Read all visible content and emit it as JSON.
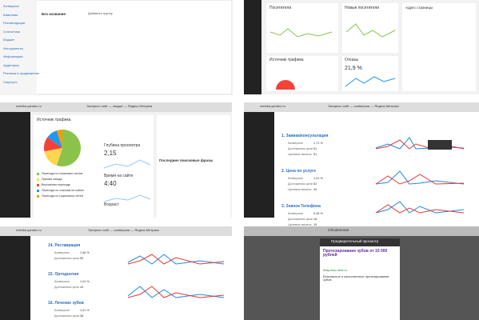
{
  "p1": {
    "sidebar": [
      "Конверсии",
      "Кампании",
      "Рекомендации",
      "Статистика",
      "Бюджет",
      "Инструменты",
      "Информация",
      "Аудитории",
      "Реклама и продвижение",
      "Свернуть"
    ],
    "title": "Без названия",
    "button": "Добавить группу"
  },
  "p2": {
    "visitors": "Посетители",
    "new_visitors": "Новые посетители",
    "page_address": "Адрес страницы",
    "traffic": "Источник трафика",
    "bounce": "Отказы",
    "bounce_value": "21,9 %"
  },
  "p3": {
    "tab": "metrika.yandex.ru",
    "page_title": "Экспресс сайт — сводка — Яндекс.Метрика",
    "traffic": {
      "title": "Источник трафика",
      "legend": [
        "Переходы из поисковых систем",
        "Прямые заходы",
        "Внутренние переходы",
        "Переходы по ссылкам на сайтах",
        "Переходы из социальных сетей"
      ],
      "values": [
        55,
        17,
        13,
        10,
        5
      ],
      "colors": [
        "#8bc34a",
        "#ffd54f",
        "#f44336",
        "#2196f3",
        "#ff9800"
      ]
    },
    "depth": {
      "title": "Глубина просмотра",
      "value": "2,15"
    },
    "time": {
      "title": "Время на сайте",
      "value": "4:40"
    },
    "age": "Возраст",
    "phrases": "Последние поисковые фразы"
  },
  "p4": {
    "tab": "metrika.yandex.ru",
    "page_title": "Экспресс сайт — конверсии — Яндекс.Метрика",
    "goals": [
      {
        "name": "1. Заявка/консультация",
        "metrics": [
          {
            "label": "Конверсия",
            "value": "1,71 %"
          },
          {
            "label": "Достижения цели",
            "value": "61"
          },
          {
            "label": "Целевые визиты",
            "value": "51"
          }
        ]
      },
      {
        "name": "2. Цена по услуге",
        "metrics": [
          {
            "label": "Конверсия",
            "value": "1,31 %"
          },
          {
            "label": "Достижения цели",
            "value": "52"
          },
          {
            "label": "Целевые визиты",
            "value": "44"
          }
        ]
      },
      {
        "name": "3. Значок Телефона",
        "metrics": [
          {
            "label": "Конверсия",
            "value": "0,45 %"
          },
          {
            "label": "Достижения цели",
            "value": "18"
          },
          {
            "label": "Целевые визиты",
            "value": "15"
          }
        ]
      }
    ]
  },
  "p5": {
    "tab": "metrika.yandex.ru",
    "page_title": "Экспресс сайт — конверсии — Яндекс.Метрика",
    "goals": [
      {
        "name": "14. Реставрация",
        "metrics": [
          {
            "label": "Конверсия",
            "value": "1,56 %"
          },
          {
            "label": "Достижения цели",
            "value": "55"
          }
        ]
      },
      {
        "name": "15. Ортодонтия",
        "metrics": [
          {
            "label": "Конверсия",
            "value": "1,24 %"
          },
          {
            "label": "Достижения цели",
            "value": "43"
          }
        ]
      },
      {
        "name": "16. Лечение зубов",
        "metrics": [
          {
            "label": "Конверсия",
            "value": "1,01 %"
          },
          {
            "label": "Достижения цели",
            "value": "36"
          }
        ]
      }
    ]
  },
  "p6": {
    "header": "Объявления",
    "dialog_title": "Предварительный просмотр",
    "ad_title": "Протезирование зубов от 15 000 рублей",
    "ad_url": "ekspress-dent.ru",
    "ad_text": "Безопасное и качественное протезирование зубов"
  }
}
